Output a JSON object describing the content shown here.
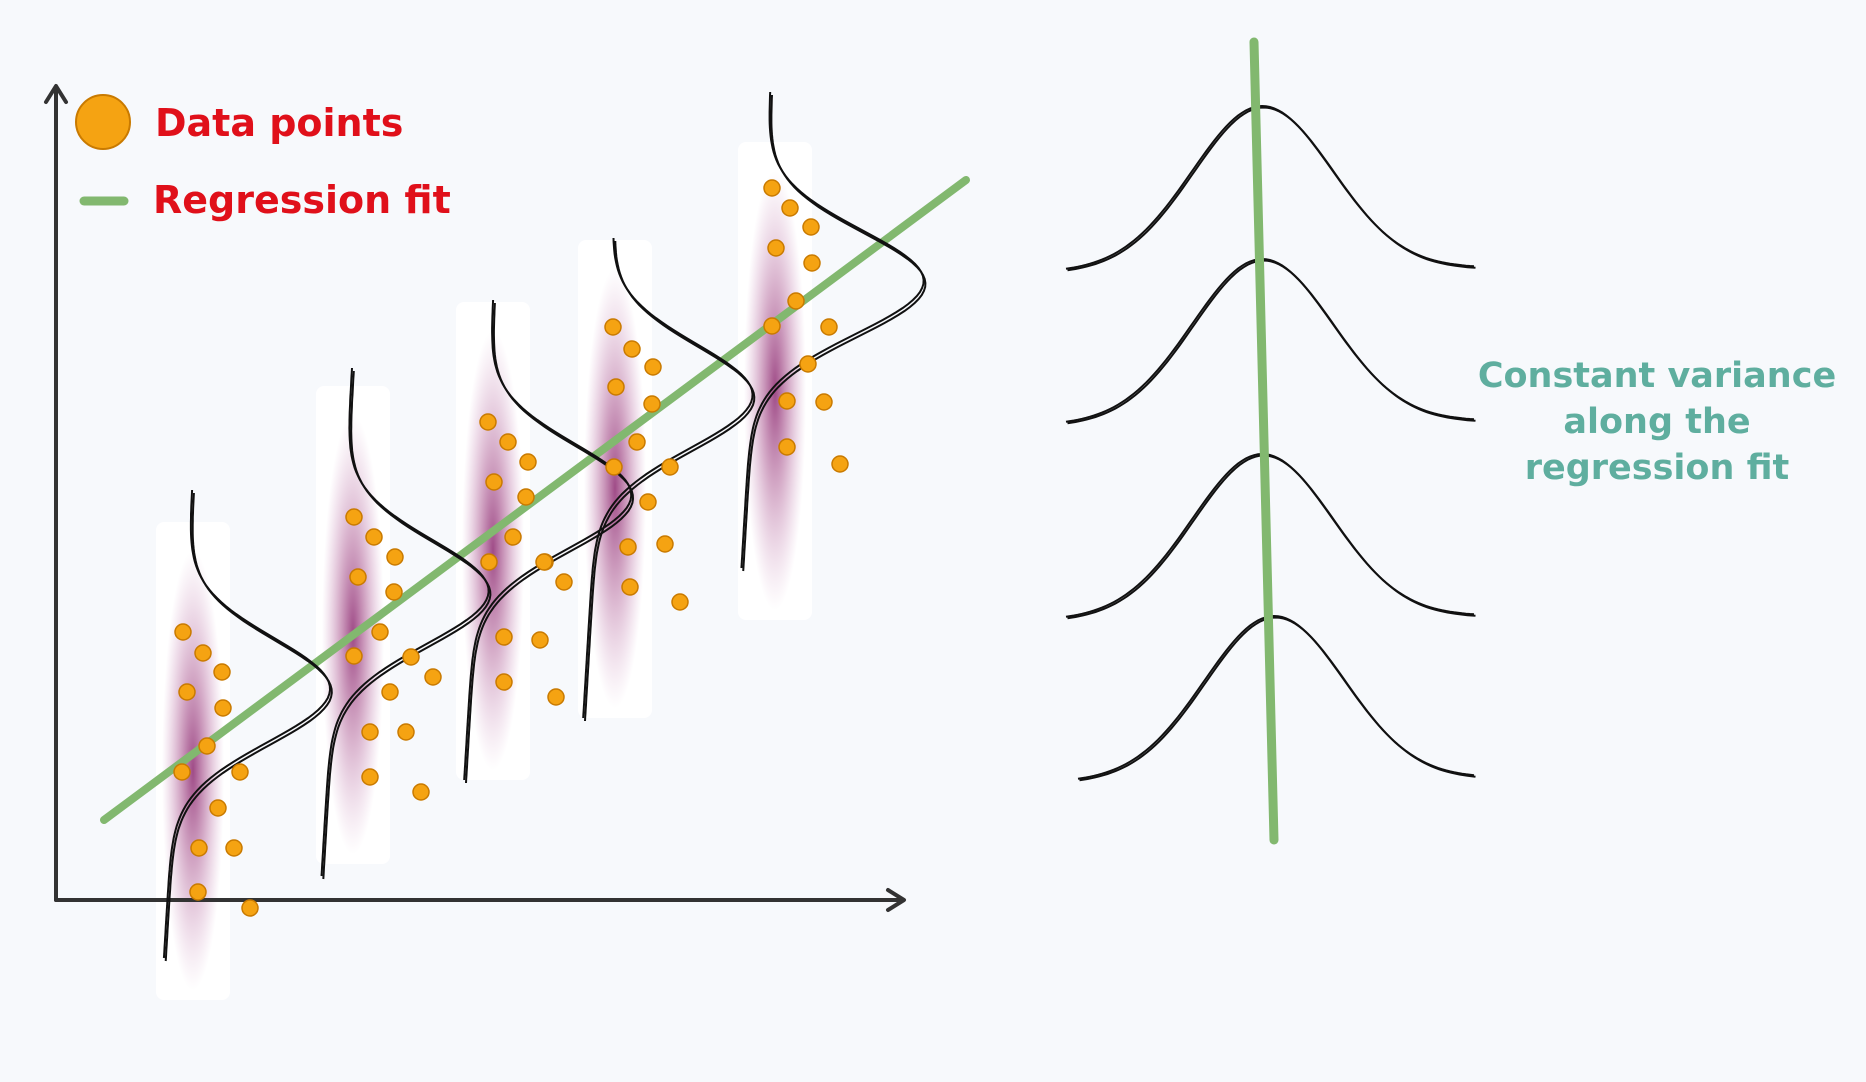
{
  "legend": {
    "data_points_label": "Data points",
    "regression_fit_label": "Regression fit"
  },
  "annotation": {
    "line1": "Constant variance",
    "line2": "along the",
    "line3": "regression fit"
  },
  "colors": {
    "point_fill": "#f5a312",
    "point_stroke": "#c97a00",
    "fit_line": "#82b86f",
    "legend_text": "#e0101a",
    "annotation_text": "#5fae9f",
    "density": "#8e2c72",
    "axis": "#333333"
  },
  "icons": {
    "x_axis_arrow": "arrow-right-icon",
    "y_axis_arrow": "arrow-up-icon"
  }
}
